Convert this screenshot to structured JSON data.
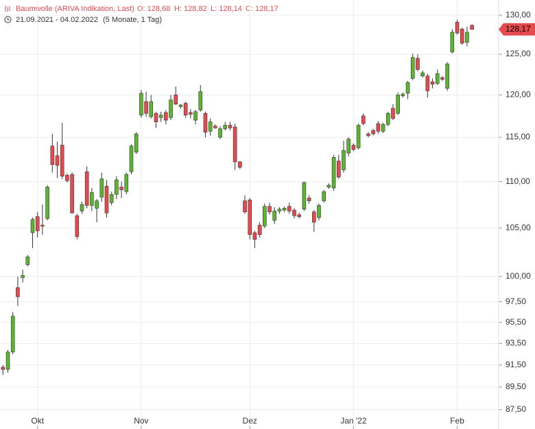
{
  "chart_data": {
    "type": "candlestick",
    "header": {
      "title": "Baumwolle (ARIVA Indikation, Last)",
      "open": "O: 128,68",
      "high": "H: 128,82",
      "low": "L: 128,14",
      "close": "C: 128,17",
      "range": "21.09.2021 - 04.02.2022",
      "span": "(5 Monate, 1 Tag)"
    },
    "open": [
      90.0,
      91.3,
      91.1,
      92.7,
      98.9,
      99.9,
      101.2,
      104.5,
      106.2,
      105.3,
      106.0,
      114.0,
      112.9,
      114.1,
      110.7,
      110.8,
      106.3,
      106.8,
      111.1,
      107.4,
      107.1,
      108.3,
      109.5,
      107.7,
      108.6,
      109.4,
      108.9,
      111.1,
      113.3,
      117.6,
      119.2,
      117.4,
      117.8,
      117.3,
      117.9,
      117.3,
      120.0,
      118.6,
      119.0,
      117.9,
      117.0,
      118.2,
      117.8,
      115.7,
      116.3,
      115.0,
      116.0,
      116.4,
      116.2,
      112.2,
      107.9,
      108.0,
      104.5,
      105.3,
      105.2,
      107.3,
      105.8,
      106.8,
      106.9,
      107.3,
      106.9,
      106.4,
      107.0,
      108.2,
      106.7,
      106.1,
      107.9,
      109.4,
      109.3,
      112.3,
      111.3,
      113.2,
      114.1,
      113.8,
      117.5,
      115.4,
      115.8,
      116.6,
      115.7,
      116.5,
      118.4,
      117.8,
      119.9,
      120.2,
      122.0,
      124.5,
      122.3,
      122.3,
      121.6,
      121.4,
      122.1,
      120.8,
      125.3,
      129.1,
      128.2,
      126.5,
      128.68
    ],
    "high": [
      90.8,
      91.5,
      92.9,
      96.5,
      100,
      100.7,
      102.2,
      106.1,
      106.7,
      107.5,
      109.6,
      115.4,
      114.5,
      116.7,
      110.9,
      111.0,
      106.5,
      107.8,
      111.7,
      109.3,
      108.1,
      111.0,
      110.2,
      108.9,
      110.6,
      110.0,
      111.0,
      114.2,
      115.6,
      120.6,
      120.4,
      120.0,
      118.0,
      118.0,
      118.2,
      120.0,
      121.0,
      118.9,
      119.2,
      118.3,
      118.2,
      121.2,
      118.0,
      117.2,
      116.5,
      116.3,
      116.8,
      116.8,
      116.6,
      112.3,
      108.5,
      108.2,
      104.7,
      105.6,
      107.6,
      107.7,
      107.2,
      107.2,
      107.3,
      107.7,
      107.1,
      106.6,
      110.0,
      108.5,
      106.9,
      107.6,
      109.1,
      109.8,
      113.0,
      113.0,
      114.6,
      115.0,
      114.3,
      116.6,
      117.8,
      115.6,
      116.0,
      116.9,
      116.7,
      118.0,
      118.9,
      120.3,
      120.3,
      121.7,
      125.1,
      125.0,
      123.0,
      122.6,
      122.0,
      123.1,
      122.3,
      124.0,
      128.2,
      129.4,
      128.4,
      128.5,
      128.82
    ],
    "low": [
      89.8,
      90.6,
      90.8,
      92.5,
      97.1,
      99.4,
      101.0,
      102.9,
      104.0,
      104.3,
      105.8,
      111.0,
      110.4,
      110.3,
      109.9,
      106.5,
      103.8,
      106.5,
      107.1,
      106.8,
      105.6,
      107.8,
      106.1,
      107.4,
      108.1,
      108.2,
      108.6,
      110.8,
      113.1,
      117.3,
      117.4,
      117.2,
      116.1,
      116.8,
      116.5,
      117.0,
      118.8,
      118.4,
      117.3,
      117.2,
      116.5,
      118.0,
      115.0,
      115.2,
      116.0,
      114.8,
      115.8,
      115.8,
      111.3,
      111.4,
      106.5,
      103.8,
      102.9,
      104.0,
      105.0,
      106.4,
      105.4,
      106.5,
      106.7,
      106.5,
      106.0,
      106.0,
      106.8,
      107.6,
      104.6,
      105.8,
      107.7,
      109.2,
      109.0,
      110.3,
      111.0,
      112.8,
      113.4,
      113.6,
      116.4,
      115.0,
      115.2,
      115.4,
      115.5,
      116.3,
      117.0,
      117.6,
      119.7,
      119.5,
      121.8,
      122.9,
      122.1,
      119.7,
      120.8,
      121.2,
      121.7,
      120.5,
      125.1,
      127.5,
      126.2,
      126.0,
      128.14
    ],
    "close": [
      90.6,
      91.1,
      92.7,
      96.1,
      98.0,
      100.1,
      102.0,
      105.9,
      104.7,
      105.2,
      109.4,
      111.9,
      111.8,
      110.6,
      110.1,
      106.6,
      104.1,
      107.5,
      107.4,
      108.8,
      107.9,
      110.3,
      106.6,
      108.6,
      110.2,
      109.1,
      110.8,
      114.0,
      115.4,
      120.2,
      117.8,
      119.2,
      116.8,
      117.6,
      117.0,
      119.4,
      118.9,
      118.8,
      117.6,
      117.7,
      118.0,
      120.4,
      115.6,
      116.8,
      116.1,
      116.0,
      116.4,
      116.1,
      112.2,
      111.6,
      106.7,
      104.3,
      103.8,
      104.3,
      107.3,
      106.7,
      106.8,
      107.0,
      107.1,
      106.8,
      106.3,
      106.2,
      109.9,
      107.9,
      105.6,
      107.4,
      108.9,
      109.6,
      112.7,
      110.5,
      113.5,
      114.8,
      113.6,
      116.4,
      116.6,
      115.2,
      115.4,
      115.7,
      116.5,
      117.8,
      117.2,
      120.0,
      120.1,
      121.5,
      124.6,
      123.1,
      122.7,
      120.5,
      121.3,
      122.6,
      121.9,
      123.8,
      127.8,
      127.7,
      126.4,
      127.8,
      128.17
    ],
    "up_color": "#5cb531",
    "down_color": "#e54a4f",
    "xlim": [
      0.4,
      101.4
    ],
    "xticks": [
      {
        "value": 8,
        "label": "Okt"
      },
      {
        "value": 29,
        "label": "Nov"
      },
      {
        "value": 51,
        "label": "Dez"
      },
      {
        "value": 72,
        "label": "Jan '22"
      },
      {
        "value": 93,
        "label": "Feb"
      }
    ],
    "ylim": [
      87,
      132
    ],
    "log_y": true,
    "yticks": [
      {
        "value": 130,
        "label": "130,00"
      },
      {
        "value": 125,
        "label": "125,00"
      },
      {
        "value": 120,
        "label": "120,00"
      },
      {
        "value": 115,
        "label": "115,00"
      },
      {
        "value": 110,
        "label": "110,00"
      },
      {
        "value": 105,
        "label": "105,00"
      },
      {
        "value": 100,
        "label": "100,00"
      },
      {
        "value": 97.5,
        "label": "97,50"
      },
      {
        "value": 95.5,
        "label": "95,50"
      },
      {
        "value": 93.5,
        "label": "93,50"
      },
      {
        "value": 91.5,
        "label": "91,50"
      },
      {
        "value": 89.5,
        "label": "89,50"
      },
      {
        "value": 87.5,
        "label": "87,50"
      }
    ],
    "last_price": {
      "value": 128.17,
      "label": "128,17"
    },
    "grid": true
  }
}
